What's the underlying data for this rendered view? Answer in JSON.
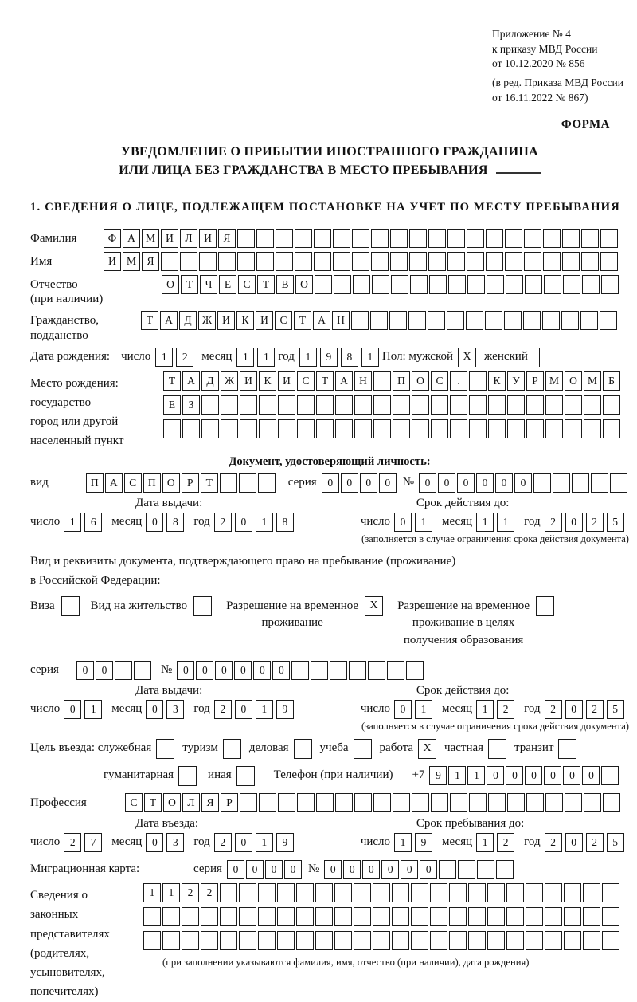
{
  "header": {
    "appendix_lines": [
      "Приложение № 4",
      "к приказу МВД России",
      "от 10.12.2020 № 856"
    ],
    "amendment_lines": [
      "(в ред. Приказа МВД России",
      "от 16.11.2022 № 867)"
    ],
    "form_label": "ФОРМА"
  },
  "title": {
    "line1": "УВЕДОМЛЕНИЕ О ПРИБЫТИИ ИНОСТРАННОГО ГРАЖДАНИНА",
    "line2": "ИЛИ ЛИЦА БЕЗ ГРАЖДАНСТВА В МЕСТО ПРЕБЫВАНИЯ"
  },
  "section1_heading": "1. СВЕДЕНИЯ О ЛИЦЕ, ПОДЛЕЖАЩЕМ ПОСТАНОВКЕ НА УЧЕТ ПО МЕСТУ ПРЕБЫВАНИЯ",
  "common": {
    "day_label": "число",
    "month_label": "месяц",
    "year_label": "год",
    "series_label": "серия",
    "number_label": "№"
  },
  "fields": {
    "surname": {
      "label": "Фамилия",
      "cells": [
        "Ф",
        "А",
        "М",
        "И",
        "Л",
        "И",
        "Я",
        "",
        "",
        "",
        "",
        "",
        "",
        "",
        "",
        "",
        "",
        "",
        "",
        "",
        "",
        "",
        "",
        "",
        "",
        "",
        ""
      ]
    },
    "name": {
      "label": "Имя",
      "cells": [
        "И",
        "М",
        "Я",
        "",
        "",
        "",
        "",
        "",
        "",
        "",
        "",
        "",
        "",
        "",
        "",
        "",
        "",
        "",
        "",
        "",
        "",
        "",
        "",
        "",
        "",
        "",
        ""
      ]
    },
    "patronymic": {
      "label": "Отчество",
      "label2": "(при наличии)",
      "cells": [
        "О",
        "Т",
        "Ч",
        "Е",
        "С",
        "Т",
        "В",
        "О",
        "",
        "",
        "",
        "",
        "",
        "",
        "",
        "",
        "",
        "",
        "",
        "",
        "",
        "",
        "",
        ""
      ]
    },
    "citizenship": {
      "label": "Гражданство,",
      "label2": "подданство",
      "cells": [
        "Т",
        "А",
        "Д",
        "Ж",
        "И",
        "К",
        "И",
        "С",
        "Т",
        "А",
        "Н",
        "",
        "",
        "",
        "",
        "",
        "",
        "",
        "",
        "",
        "",
        "",
        "",
        "",
        ""
      ]
    },
    "birth_date": {
      "label": "Дата рождения:",
      "day": [
        "1",
        "2"
      ],
      "month": [
        "1",
        "1"
      ],
      "year": [
        "1",
        "9",
        "8",
        "1"
      ],
      "sex_male_label": "Пол: мужской",
      "sex_male": "X",
      "sex_female_label": "женский",
      "sex_female": ""
    },
    "birth_place": {
      "labels": [
        "Место рождения:",
        "государство",
        "город или другой",
        "населенный пункт"
      ],
      "row1": [
        "Т",
        "А",
        "Д",
        "Ж",
        "И",
        "К",
        "И",
        "С",
        "Т",
        "А",
        "Н",
        "",
        "П",
        "О",
        "С",
        ".",
        "",
        "К",
        "У",
        "Р",
        "М",
        "О",
        "М",
        "Б"
      ],
      "row2": [
        "Е",
        "З",
        "",
        "",
        "",
        "",
        "",
        "",
        "",
        "",
        "",
        "",
        "",
        "",
        "",
        "",
        "",
        "",
        "",
        "",
        "",
        "",
        "",
        ""
      ],
      "row3": [
        "",
        "",
        "",
        "",
        "",
        "",
        "",
        "",
        "",
        "",
        "",
        "",
        "",
        "",
        "",
        "",
        "",
        "",
        "",
        "",
        "",
        "",
        "",
        ""
      ]
    }
  },
  "identity_doc": {
    "heading": "Документ, удостоверяющий личность:",
    "type_label": "вид",
    "type_cells": [
      "П",
      "А",
      "С",
      "П",
      "О",
      "Р",
      "Т",
      "",
      "",
      ""
    ],
    "series_cells": [
      "0",
      "0",
      "0",
      "0"
    ],
    "number_cells": [
      "0",
      "0",
      "0",
      "0",
      "0",
      "0",
      "",
      "",
      "",
      "",
      ""
    ],
    "issue": {
      "head": "Дата выдачи:",
      "day": [
        "1",
        "6"
      ],
      "month": [
        "0",
        "8"
      ],
      "year": [
        "2",
        "0",
        "1",
        "8"
      ]
    },
    "valid": {
      "head": "Срок действия до:",
      "day": [
        "0",
        "1"
      ],
      "month": [
        "1",
        "1"
      ],
      "year": [
        "2",
        "0",
        "2",
        "5"
      ]
    },
    "note": "(заполняется в случае ограничения срока действия документа)"
  },
  "residence_doc": {
    "intro_line1": "Вид и реквизиты документа, подтверждающего право на пребывание (проживание)",
    "intro_line2": "в Российской Федерации:",
    "visa": {
      "label": "Виза",
      "checked": ""
    },
    "residence_permit": {
      "label": "Вид на жительство",
      "checked": ""
    },
    "temp_permit": {
      "lines": [
        "Разрешение на временное",
        "проживание"
      ],
      "checked": "X"
    },
    "temp_permit_edu": {
      "lines": [
        "Разрешение на временное",
        "проживание в целях",
        "получения образования"
      ],
      "checked": ""
    },
    "series_cells": [
      "0",
      "0",
      "",
      ""
    ],
    "number_cells": [
      "0",
      "0",
      "0",
      "0",
      "0",
      "0",
      "",
      "",
      "",
      "",
      "",
      "",
      ""
    ],
    "issue": {
      "head": "Дата выдачи:",
      "day": [
        "0",
        "1"
      ],
      "month": [
        "0",
        "3"
      ],
      "year": [
        "2",
        "0",
        "1",
        "9"
      ]
    },
    "valid": {
      "head": "Срок действия до:",
      "day": [
        "0",
        "1"
      ],
      "month": [
        "1",
        "2"
      ],
      "year": [
        "2",
        "0",
        "2",
        "5"
      ]
    },
    "note": "(заполняется в случае ограничения срока действия документа)"
  },
  "purpose": {
    "label": "Цель въезда: служебная",
    "items": [
      {
        "label": "туризм",
        "checked": ""
      },
      {
        "label": "деловая",
        "checked": ""
      },
      {
        "label": "учеба",
        "checked": ""
      },
      {
        "label": "работа",
        "checked": "X"
      },
      {
        "label": "частная",
        "checked": ""
      },
      {
        "label": "транзит",
        "checked": ""
      }
    ],
    "first_checked": "",
    "humanitarian": {
      "label": "гуманитарная",
      "checked": ""
    },
    "other": {
      "label": "иная",
      "checked": ""
    },
    "phone_label": "Телефон (при наличии)",
    "phone_prefix": "+7",
    "phone_cells": [
      "9",
      "1",
      "1",
      "0",
      "0",
      "0",
      "0",
      "0",
      "0",
      ""
    ]
  },
  "profession": {
    "label": "Профессия",
    "cells": [
      "С",
      "Т",
      "О",
      "Л",
      "Я",
      "Р",
      "",
      "",
      "",
      "",
      "",
      "",
      "",
      "",
      "",
      "",
      "",
      "",
      "",
      "",
      "",
      "",
      "",
      "",
      "",
      ""
    ]
  },
  "entry": {
    "date": {
      "head": "Дата въезда:",
      "day": [
        "2",
        "7"
      ],
      "month": [
        "0",
        "3"
      ],
      "year": [
        "2",
        "0",
        "1",
        "9"
      ]
    },
    "until": {
      "head": "Срок пребывания до:",
      "day": [
        "1",
        "9"
      ],
      "month": [
        "1",
        "2"
      ],
      "year": [
        "2",
        "0",
        "2",
        "5"
      ]
    }
  },
  "migration_card": {
    "label": "Миграционная карта:",
    "series_cells": [
      "0",
      "0",
      "0",
      "0"
    ],
    "number_cells": [
      "0",
      "0",
      "0",
      "0",
      "0",
      "0",
      "",
      "",
      "",
      ""
    ]
  },
  "representatives": {
    "labels": [
      "Сведения о",
      "законных",
      "представителях",
      "(родителях,",
      "усыновителях,",
      "попечителях)"
    ],
    "row1": [
      "1",
      "1",
      "2",
      "2",
      "",
      "",
      "",
      "",
      "",
      "",
      "",
      "",
      "",
      "",
      "",
      "",
      "",
      "",
      "",
      "",
      "",
      "",
      "",
      "",
      ""
    ],
    "row2": [
      "",
      "",
      "",
      "",
      "",
      "",
      "",
      "",
      "",
      "",
      "",
      "",
      "",
      "",
      "",
      "",
      "",
      "",
      "",
      "",
      "",
      "",
      "",
      "",
      ""
    ],
    "row3": [
      "",
      "",
      "",
      "",
      "",
      "",
      "",
      "",
      "",
      "",
      "",
      "",
      "",
      "",
      "",
      "",
      "",
      "",
      "",
      "",
      "",
      "",
      "",
      "",
      ""
    ],
    "note": "(при заполнении указываются фамилия, имя, отчество (при наличии), дата рождения)"
  }
}
